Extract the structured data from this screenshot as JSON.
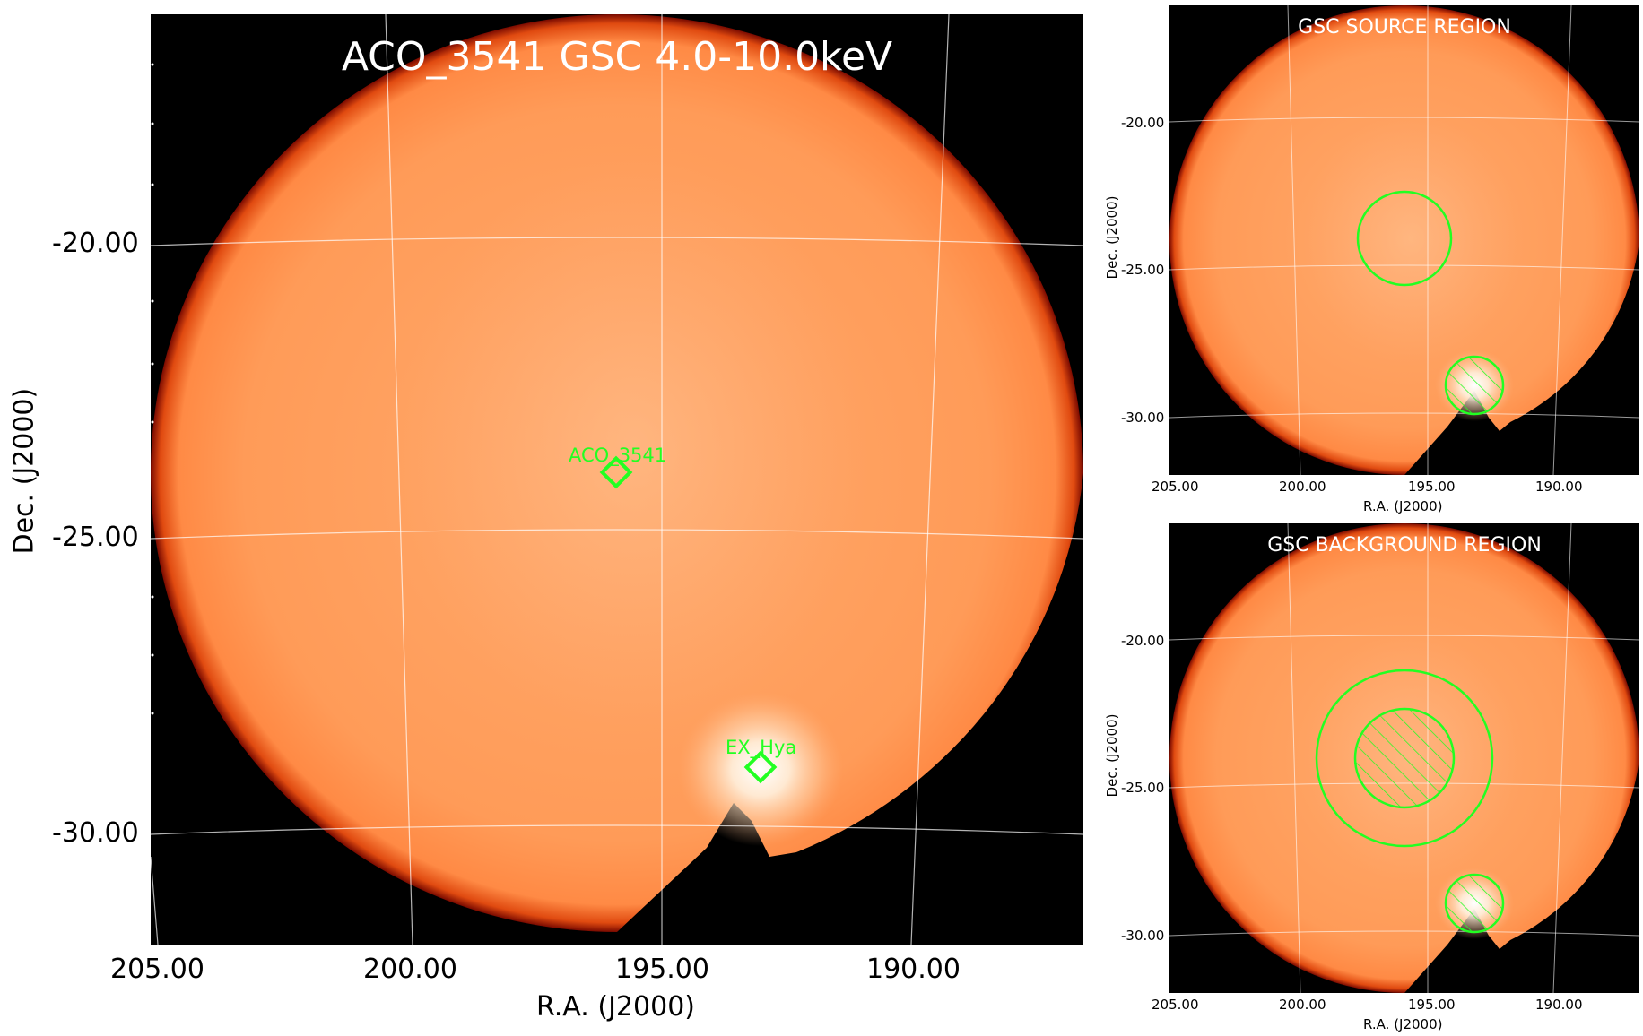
{
  "main_panel": {
    "title": "ACO_3541 GSC 4.0-10.0keV",
    "x_axis_label": "R.A. (J2000)",
    "y_axis_label": "Dec. (J2000)",
    "x_ticks": [
      "205.00",
      "200.00",
      "195.00",
      "190.00"
    ],
    "y_ticks": [
      "-20.00",
      "-25.00",
      "-30.00"
    ],
    "sources": [
      {
        "label": "ACO_3541"
      },
      {
        "label": "EX_Hya"
      }
    ]
  },
  "source_panel": {
    "title": "GSC SOURCE REGION",
    "x_axis_label": "R.A. (J2000)",
    "y_axis_label": "Dec. (J2000)",
    "x_ticks": [
      "205.00",
      "200.00",
      "195.00",
      "190.00"
    ],
    "y_ticks": [
      "-20.00",
      "-25.00",
      "-30.00"
    ]
  },
  "background_panel": {
    "title": "GSC BACKGROUND REGION",
    "x_axis_label": "R.A. (J2000)",
    "y_axis_label": "Dec. (J2000)",
    "x_ticks": [
      "205.00",
      "200.00",
      "195.00",
      "190.00"
    ],
    "y_ticks": [
      "-20.00",
      "-25.00",
      "-30.00"
    ]
  },
  "colors": {
    "field": "#ff9a55",
    "edge": "#c21a00",
    "region": "#22ff22",
    "grid": "#ffffff"
  }
}
